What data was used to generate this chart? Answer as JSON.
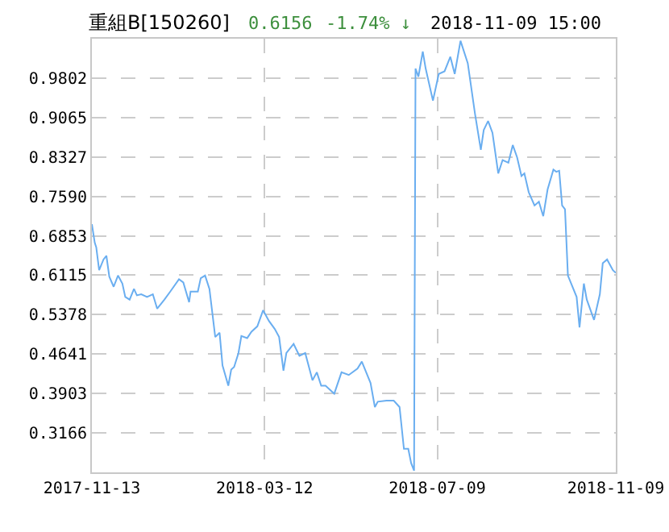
{
  "chart_data": {
    "type": "line",
    "title": "重組B[150260]",
    "annotations": [
      "0.6156",
      "-1.74% ↓",
      "2018-11-09 15:00"
    ],
    "x": [
      "2017-11-13",
      "2017-11-15",
      "2017-11-16",
      "2017-11-18",
      "2017-11-21",
      "2017-11-23",
      "2017-11-25",
      "2017-11-28",
      "2017-12-01",
      "2017-12-04",
      "2017-12-06",
      "2017-12-09",
      "2017-12-12",
      "2017-12-14",
      "2017-12-17",
      "2017-12-21",
      "2017-12-25",
      "2017-12-28",
      "2018-01-02",
      "2018-01-06",
      "2018-01-12",
      "2018-01-15",
      "2018-01-19",
      "2018-01-20",
      "2018-01-25",
      "2018-01-27",
      "2018-01-30",
      "2018-02-02",
      "2018-02-06",
      "2018-02-09",
      "2018-02-11",
      "2018-02-15",
      "2018-02-17",
      "2018-02-19",
      "2018-02-22",
      "2018-02-24",
      "2018-02-28",
      "2018-03-03",
      "2018-03-07",
      "2018-03-11",
      "2018-03-15",
      "2018-03-19",
      "2018-03-22",
      "2018-03-25",
      "2018-03-27",
      "2018-04-01",
      "2018-04-05",
      "2018-04-09",
      "2018-04-14",
      "2018-04-17",
      "2018-04-20",
      "2018-04-23",
      "2018-04-29",
      "2018-05-04",
      "2018-05-09",
      "2018-05-15",
      "2018-05-18",
      "2018-05-24",
      "2018-05-27",
      "2018-05-29",
      "2018-06-04",
      "2018-06-09",
      "2018-06-13",
      "2018-06-16",
      "2018-06-19",
      "2018-06-21",
      "2018-06-23",
      "2018-06-24",
      "2018-06-26",
      "2018-06-29",
      "2018-07-01",
      "2018-07-06",
      "2018-07-10",
      "2018-07-14",
      "2018-07-18",
      "2018-07-21",
      "2018-07-25",
      "2018-07-30",
      "2018-08-04",
      "2018-08-08",
      "2018-08-10",
      "2018-08-13",
      "2018-08-16",
      "2018-08-20",
      "2018-08-23",
      "2018-08-27",
      "2018-08-30",
      "2018-09-02",
      "2018-09-05",
      "2018-09-07",
      "2018-09-10",
      "2018-09-14",
      "2018-09-17",
      "2018-09-20",
      "2018-09-23",
      "2018-09-27",
      "2018-09-29",
      "2018-10-01",
      "2018-10-03",
      "2018-10-05",
      "2018-10-07",
      "2018-10-13",
      "2018-10-15",
      "2018-10-18",
      "2018-10-20",
      "2018-10-25",
      "2018-10-29",
      "2018-10-31",
      "2018-11-03",
      "2018-11-07",
      "2018-11-09"
    ],
    "series": [
      {
        "color": "#6aaef0",
        "values": [
          0.707,
          0.672,
          0.664,
          0.621,
          0.641,
          0.648,
          0.609,
          0.59,
          0.611,
          0.596,
          0.571,
          0.566,
          0.586,
          0.574,
          0.576,
          0.571,
          0.576,
          0.549,
          0.566,
          0.581,
          0.604,
          0.598,
          0.561,
          0.581,
          0.581,
          0.606,
          0.611,
          0.586,
          0.496,
          0.504,
          0.443,
          0.405,
          0.435,
          0.44,
          0.466,
          0.498,
          0.494,
          0.506,
          0.516,
          0.546,
          0.526,
          0.511,
          0.496,
          0.433,
          0.466,
          0.483,
          0.461,
          0.466,
          0.415,
          0.43,
          0.405,
          0.405,
          0.39,
          0.43,
          0.425,
          0.437,
          0.45,
          0.41,
          0.365,
          0.375,
          0.377,
          0.377,
          0.365,
          0.287,
          0.287,
          0.26,
          0.246,
          0.998,
          0.983,
          1.03,
          0.998,
          0.938,
          0.988,
          0.993,
          1.02,
          0.988,
          1.05,
          1.008,
          0.913,
          0.846,
          0.883,
          0.9,
          0.878,
          0.802,
          0.827,
          0.822,
          0.855,
          0.832,
          0.797,
          0.802,
          0.767,
          0.742,
          0.749,
          0.722,
          0.772,
          0.809,
          0.805,
          0.807,
          0.742,
          0.735,
          0.611,
          0.571,
          0.514,
          0.596,
          0.566,
          0.528,
          0.576,
          0.634,
          0.641,
          0.621,
          0.616
        ]
      }
    ],
    "xlim": [
      "2017-11-13",
      "2018-11-09"
    ],
    "xticks": [
      "2017-11-13",
      "2018-03-12",
      "2018-07-09",
      "2018-11-09"
    ],
    "ylim": [
      0.2429,
      1.0539
    ],
    "yticks": [
      {
        "value": 0.3166,
        "label": "0.3166"
      },
      {
        "value": 0.3903,
        "label": "0.3903"
      },
      {
        "value": 0.4641,
        "label": "0.4641"
      },
      {
        "value": 0.5378,
        "label": "0.5378"
      },
      {
        "value": 0.6115,
        "label": "0.6115"
      },
      {
        "value": 0.6853,
        "label": "0.6853"
      },
      {
        "value": 0.759,
        "label": "0.7590"
      },
      {
        "value": 0.8327,
        "label": "0.8327"
      },
      {
        "value": 0.9065,
        "label": "0.9065"
      },
      {
        "value": 0.9802,
        "label": "0.9802"
      }
    ],
    "grid": true,
    "marker": "none",
    "line_style": "solid"
  }
}
